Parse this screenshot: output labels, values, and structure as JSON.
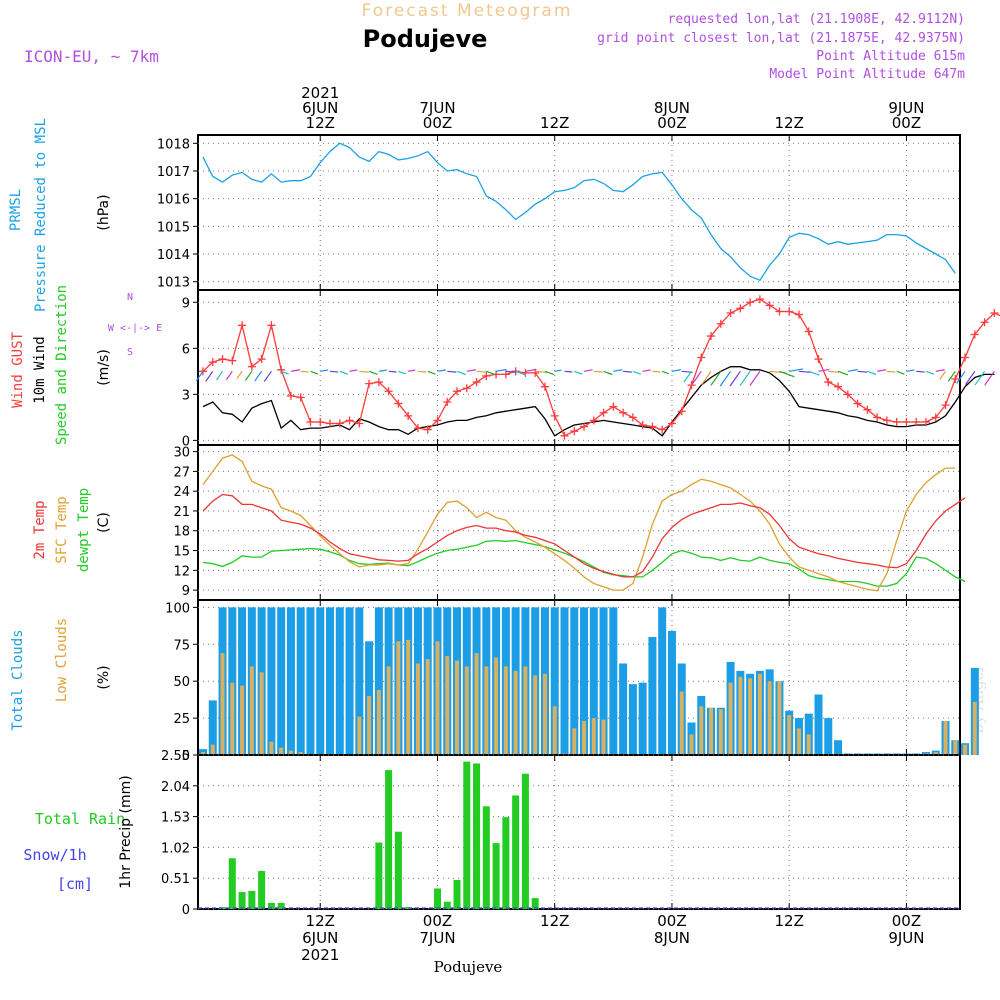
{
  "header": {
    "title": "Forecast Meteogram",
    "location": "Podujeve",
    "model": "ICON-EU, ~ 7km",
    "requested": "requested lon,lat (21.1908E, 42.9112N)",
    "gridpoint": "grid point closest lon,lat (21.1875E, 42.9375N)",
    "point_alt": "Point Altitude 615m",
    "model_alt": "Model Point Altitude 647m",
    "footer": "Podujeve",
    "watermark": "by Angel"
  },
  "time_axis": {
    "top": [
      {
        "t": 12,
        "lines": [
          "2021",
          "6JUN",
          "12Z"
        ]
      },
      {
        "t": 24,
        "lines": [
          "7JUN",
          "00Z"
        ]
      },
      {
        "t": 36,
        "lines": [
          "12Z"
        ]
      },
      {
        "t": 48,
        "lines": [
          "8JUN",
          "00Z"
        ]
      },
      {
        "t": 60,
        "lines": [
          "12Z"
        ]
      },
      {
        "t": 72,
        "lines": [
          "9JUN",
          "00Z"
        ]
      }
    ],
    "bottom": [
      {
        "t": 12,
        "lines": [
          "12Z",
          "6JUN",
          "2021"
        ]
      },
      {
        "t": 24,
        "lines": [
          "00Z",
          "7JUN"
        ]
      },
      {
        "t": 36,
        "lines": [
          "12Z"
        ]
      },
      {
        "t": 48,
        "lines": [
          "00Z",
          "8JUN"
        ]
      },
      {
        "t": 60,
        "lines": [
          "12Z"
        ]
      },
      {
        "t": 72,
        "lines": [
          "00Z",
          "9JUN"
        ]
      }
    ]
  },
  "colors": {
    "pressure": "#1aa2e6",
    "gust": "#ff3b3b",
    "wind": "#000000",
    "temp": "#ee3333",
    "sfc": "#e0a030",
    "dew": "#22cc22",
    "total_clouds": "#1b9ee6",
    "low_clouds": "#d8b060",
    "rain": "#22cc22",
    "snow": "#4444ee",
    "title": "#f0c890",
    "meta": "#b050e0"
  },
  "chart_data": [
    {
      "type": "line",
      "ylabel_lines": [
        "PRMSL",
        "Pressure Reduced to MSL"
      ],
      "unit": "(hPa)",
      "ylim": [
        1012.7,
        1018.3
      ],
      "yticks": [
        1013,
        1014,
        1015,
        1016,
        1017,
        1018
      ],
      "series": [
        {
          "values": [
            1017.5,
            1016.8,
            1016.6,
            1016.85,
            1016.95,
            1016.7,
            1016.6,
            1016.9,
            1016.6,
            1016.65,
            1016.65,
            1016.8,
            1017.3,
            1017.7,
            1018.0,
            1017.85,
            1017.5,
            1017.35,
            1017.7,
            1017.6,
            1017.4,
            1017.45,
            1017.55,
            1017.7,
            1017.3,
            1017.0,
            1017.05,
            1016.9,
            1016.8,
            1016.1,
            1015.9,
            1015.6,
            1015.25,
            1015.5,
            1015.8,
            1016.0,
            1016.25,
            1016.3,
            1016.4,
            1016.65,
            1016.7,
            1016.55,
            1016.3,
            1016.25,
            1016.5,
            1016.8,
            1016.9,
            1016.95,
            1016.5,
            1016.0,
            1015.6,
            1015.3,
            1014.7,
            1014.2,
            1013.9,
            1013.5,
            1013.2,
            1013.05,
            1013.6,
            1014.0,
            1014.6,
            1014.75,
            1014.7,
            1014.55,
            1014.35,
            1014.45,
            1014.35,
            1014.4,
            1014.45,
            1014.5,
            1014.7,
            1014.7,
            1014.65,
            1014.4,
            1014.2,
            1014.0,
            1013.8,
            1013.3
          ]
        }
      ]
    },
    {
      "type": "line",
      "ylabel_lines": [
        "Wind GUST",
        "10m Wind",
        "Speed and Direction"
      ],
      "unit": "(m/s)",
      "compass": [
        "N",
        "S",
        "W <-|-> E"
      ],
      "ylim": [
        -0.3,
        9.8
      ],
      "yticks": [
        0,
        3,
        6,
        9
      ],
      "series": [
        {
          "name": "gust",
          "values": [
            4.5,
            5.1,
            5.3,
            5.2,
            7.5,
            4.8,
            5.3,
            7.5,
            4.6,
            2.9,
            2.8,
            1.2,
            1.2,
            1.1,
            1.1,
            1.3,
            1.1,
            3.7,
            3.8,
            3.2,
            2.4,
            1.6,
            0.8,
            0.7,
            1.3,
            2.5,
            3.2,
            3.4,
            3.8,
            4.2,
            4.3,
            4.3,
            4.5,
            4.4,
            4.4,
            3.5,
            1.6,
            0.3,
            0.6,
            0.9,
            1.3,
            1.8,
            2.2,
            1.8,
            1.5,
            1.0,
            0.9,
            0.7,
            1.1,
            1.9,
            3.6,
            5.4,
            6.8,
            7.6,
            8.3,
            8.6,
            9.0,
            9.2,
            8.8,
            8.4,
            8.4,
            8.2,
            7.1,
            5.3,
            3.8,
            3.5,
            3.0,
            2.4,
            2.0,
            1.5,
            1.3,
            1.2,
            1.2,
            1.2,
            1.2,
            1.5,
            2.3,
            4.0,
            5.4,
            6.9,
            7.7,
            8.3,
            8.0
          ]
        },
        {
          "name": "wind",
          "values": [
            2.2,
            2.5,
            1.8,
            1.7,
            1.2,
            2.1,
            2.4,
            2.6,
            0.8,
            1.3,
            0.7,
            0.8,
            0.8,
            0.9,
            1.0,
            0.7,
            1.4,
            1.2,
            0.9,
            0.7,
            0.7,
            0.4,
            0.8,
            0.9,
            1.0,
            1.2,
            1.3,
            1.3,
            1.5,
            1.6,
            1.8,
            1.9,
            2.0,
            2.1,
            2.2,
            1.4,
            0.3,
            0.7,
            1.0,
            1.1,
            1.2,
            1.3,
            1.2,
            1.1,
            1.0,
            0.9,
            0.8,
            0.3,
            1.2,
            2.0,
            2.8,
            3.6,
            4.1,
            4.5,
            4.8,
            4.8,
            4.6,
            4.6,
            4.4,
            3.9,
            3.2,
            2.2,
            2.1,
            2.0,
            1.9,
            1.8,
            1.6,
            1.5,
            1.3,
            1.2,
            1.0,
            0.9,
            0.9,
            1.0,
            1.0,
            1.2,
            1.6,
            2.5,
            3.5,
            4.1,
            4.3,
            4.3
          ]
        }
      ]
    },
    {
      "type": "line",
      "ylabel_lines": [
        "2m Temp",
        "SFC Temp",
        "dewpt Temp"
      ],
      "unit": "(C)",
      "ylim": [
        7.5,
        31
      ],
      "yticks": [
        9,
        12,
        15,
        18,
        21,
        24,
        27,
        30
      ],
      "series": [
        {
          "name": "2m Temp",
          "values": [
            21,
            22.5,
            23.5,
            23.3,
            22,
            22,
            21.5,
            21,
            19.6,
            19.3,
            19,
            18.4,
            17.5,
            16.3,
            15.3,
            14.5,
            14.2,
            13.9,
            13.6,
            13.5,
            13.4,
            13.5,
            14.5,
            15.3,
            16.3,
            17.3,
            18.0,
            18.5,
            18.8,
            18.4,
            18.4,
            18.0,
            17.8,
            17.3,
            17.0,
            16.5,
            16.0,
            15.0,
            14.0,
            13.0,
            12.3,
            11.8,
            11.4,
            11.0,
            11.0,
            11.8,
            14.0,
            16.8,
            18.5,
            19.7,
            20.5,
            21.0,
            21.5,
            22.0,
            22.0,
            22.2,
            21.8,
            21.5,
            20.5,
            18.8,
            16.8,
            15.5,
            15.0,
            14.5,
            14.2,
            13.8,
            13.5,
            13.2,
            13.0,
            12.8,
            12.5,
            12.4,
            13.0,
            15.0,
            17.5,
            19.5,
            21.0,
            22.0,
            23.0
          ]
        },
        {
          "name": "SFC Temp",
          "values": [
            25,
            27,
            29,
            29.5,
            28.5,
            25.5,
            24.8,
            24.3,
            21.5,
            21.0,
            20.3,
            18.8,
            17.2,
            15.8,
            14.5,
            13.3,
            12.5,
            12.8,
            12.8,
            13.0,
            12.8,
            13.0,
            15.2,
            17.8,
            20.5,
            22.3,
            22.5,
            21.5,
            20.0,
            20.8,
            20.0,
            19.6,
            18.0,
            17.0,
            16.3,
            15.5,
            14.5,
            13.5,
            12.3,
            11.0,
            10.0,
            9.5,
            9.0,
            9.0,
            10.0,
            14.0,
            19.0,
            22.5,
            23.5,
            24.0,
            25.0,
            25.8,
            25.5,
            25.0,
            24.5,
            23.5,
            22.5,
            21.0,
            19.0,
            16.0,
            14.0,
            12.5,
            12.0,
            11.5,
            11.0,
            10.3,
            9.9,
            9.5,
            9.1,
            8.9,
            11.5,
            16.5,
            21.0,
            23.5,
            25.3,
            26.5,
            27.5,
            27.5
          ]
        },
        {
          "name": "dewpt Temp",
          "values": [
            13.2,
            13.0,
            12.6,
            13.2,
            14.2,
            14.0,
            14.0,
            14.9,
            15.0,
            15.1,
            15.2,
            15.3,
            15.2,
            14.8,
            14.3,
            13.5,
            13.0,
            12.9,
            13.0,
            13.1,
            12.8,
            12.7,
            13.3,
            14.0,
            14.6,
            15.0,
            15.2,
            15.5,
            15.8,
            16.4,
            16.5,
            16.4,
            16.5,
            16.2,
            15.9,
            15.6,
            15.1,
            14.6,
            14.0,
            13.3,
            12.5,
            11.7,
            11.3,
            11.2,
            11.0,
            11.0,
            12.0,
            13.2,
            14.5,
            15.0,
            14.6,
            14.0,
            13.9,
            13.5,
            13.9,
            13.5,
            13.4,
            14.0,
            13.5,
            13.2,
            13.0,
            12.2,
            11.2,
            10.8,
            10.6,
            10.3,
            10.3,
            10.3,
            10.0,
            9.6,
            9.6,
            10.0,
            11.5,
            14.0,
            13.8,
            13.0,
            12.0,
            11.0,
            10.3
          ]
        }
      ]
    },
    {
      "type": "bar",
      "ylabel_lines": [
        "Total Clouds",
        "Low Clouds"
      ],
      "unit": "(%)",
      "ylim": [
        0,
        105
      ],
      "yticks": [
        0,
        25,
        50,
        75,
        100
      ],
      "series": [
        {
          "name": "Total Clouds",
          "values": [
            4,
            37,
            100,
            100,
            100,
            100,
            100,
            100,
            100,
            100,
            100,
            100,
            100,
            100,
            100,
            100,
            100,
            77,
            100,
            100,
            100,
            100,
            100,
            100,
            100,
            100,
            100,
            100,
            100,
            100,
            100,
            100,
            100,
            100,
            100,
            100,
            100,
            100,
            100,
            100,
            100,
            100,
            100,
            62,
            48,
            49,
            80,
            100,
            84,
            62,
            22,
            40,
            32,
            32,
            63,
            57,
            55,
            57,
            58,
            50,
            30,
            25,
            28,
            41,
            25,
            10,
            1,
            1,
            1,
            1,
            1,
            1,
            1,
            1,
            2,
            3,
            23,
            10,
            8,
            59
          ]
        },
        {
          "name": "Low Clouds",
          "values": [
            2,
            7,
            69,
            49,
            47,
            60,
            56,
            9,
            5,
            3,
            2,
            0,
            0,
            0,
            0,
            0,
            26,
            40,
            44,
            60,
            77,
            78,
            62,
            65,
            77,
            67,
            64,
            60,
            69,
            60,
            66,
            60,
            57,
            60,
            54,
            55,
            33,
            1,
            18,
            23,
            25,
            24,
            0,
            0,
            0,
            0,
            0,
            0,
            0,
            43,
            14,
            33,
            32,
            31,
            49,
            53,
            52,
            55,
            50,
            50,
            27,
            18,
            14,
            0,
            0,
            0,
            0,
            0,
            0,
            0,
            0,
            0,
            0,
            0,
            1,
            2,
            23,
            10,
            7,
            36
          ]
        }
      ]
    },
    {
      "type": "bar",
      "ylabel_lines": [
        "1hr Precip (mm)"
      ],
      "legend_lines": [
        "Total  Rain",
        "Snow/1h",
        "[cm]"
      ],
      "ylim": [
        0,
        2.55
      ],
      "yticks": [
        0,
        0.51,
        1.02,
        1.53,
        2.04,
        2.55
      ],
      "series": [
        {
          "name": "Total Rain",
          "values": [
            0,
            0,
            0.03,
            0.84,
            0.28,
            0.3,
            0.63,
            0.1,
            0.1,
            0,
            0,
            0,
            0,
            0,
            0,
            0,
            0,
            0,
            1.1,
            2.3,
            1.28,
            0.03,
            0,
            0,
            0.34,
            0.12,
            0.48,
            2.44,
            2.41,
            1.7,
            1.09,
            1.52,
            1.88,
            2.24,
            0.18,
            0,
            0,
            0,
            0,
            0,
            0,
            0,
            0,
            0,
            0,
            0,
            0,
            0,
            0,
            0,
            0,
            0,
            0,
            0,
            0,
            0,
            0,
            0,
            0,
            0,
            0,
            0,
            0,
            0,
            0,
            0,
            0,
            0,
            0,
            0,
            0,
            0,
            0,
            0,
            0,
            0,
            0,
            0,
            0,
            0
          ]
        }
      ]
    }
  ]
}
